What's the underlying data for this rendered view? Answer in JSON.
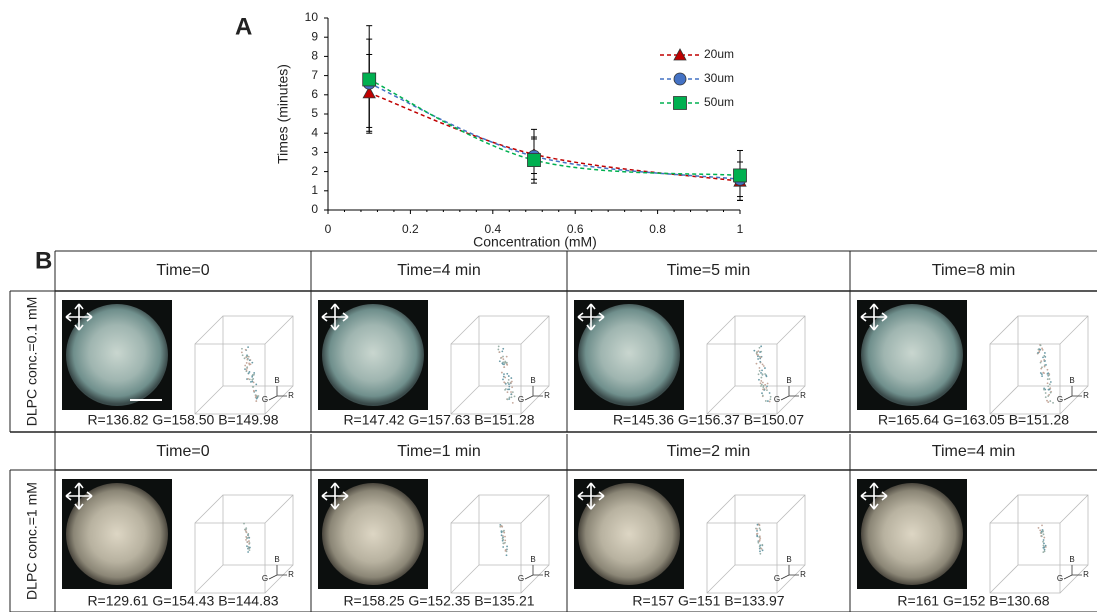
{
  "chart_data": {
    "type": "line",
    "panel_label": "A",
    "x_label": "Concentration (mM)",
    "y_label": "Times (minutes)",
    "x": [
      0.1,
      0.5,
      1
    ],
    "xlim": [
      0,
      1
    ],
    "xticks": [
      0,
      0.2,
      0.4,
      0.6,
      0.8,
      1
    ],
    "ylim": [
      0,
      10
    ],
    "yticks": [
      0,
      1,
      2,
      3,
      4,
      5,
      6,
      7,
      8,
      9,
      10
    ],
    "legend": "upper right",
    "line_style": "dashed",
    "smooth": true,
    "series": [
      {
        "name": "20um",
        "color": "#c00000",
        "marker": "triangle",
        "values": [
          6.1,
          2.9,
          1.5
        ],
        "errors": [
          2.0,
          1.3,
          1.0
        ]
      },
      {
        "name": "30um",
        "color": "#4472c4",
        "marker": "circle",
        "values": [
          6.6,
          2.8,
          1.6
        ],
        "errors": [
          2.3,
          0.9,
          0.9
        ]
      },
      {
        "name": "50um",
        "color": "#00b050",
        "marker": "square",
        "values": [
          6.8,
          2.6,
          1.8
        ],
        "errors": [
          2.8,
          1.2,
          1.3
        ]
      }
    ]
  },
  "panel_b": {
    "label": "B",
    "cube_axes": [
      "B",
      "G",
      "R"
    ],
    "rows": [
      {
        "label": "DLPC conc.=0.1 mM",
        "cells": [
          {
            "time": "Time=0",
            "rgb": "R=136.82 G=158.50 B=149.98"
          },
          {
            "time": "Time=4 min",
            "rgb": "R=147.42 G=157.63 B=151.28"
          },
          {
            "time": "Time=5 min",
            "rgb": "R=145.36 G=156.37 B=150.07"
          },
          {
            "time": "Time=8 min",
            "rgb": "R=165.64 G=163.05 B=151.28"
          }
        ]
      },
      {
        "label": "DLPC conc.=1 mM",
        "cells": [
          {
            "time": "Time=0",
            "rgb": "R=129.61 G=154.43 B=144.83"
          },
          {
            "time": "Time=1 min",
            "rgb": "R=158.25 G=152.35 B=135.21"
          },
          {
            "time": "Time=2 min",
            "rgb": "R=157 G=151 B=133.97"
          },
          {
            "time": "Time=4 min",
            "rgb": "R=161 G=152 B=130.68"
          }
        ]
      }
    ]
  }
}
